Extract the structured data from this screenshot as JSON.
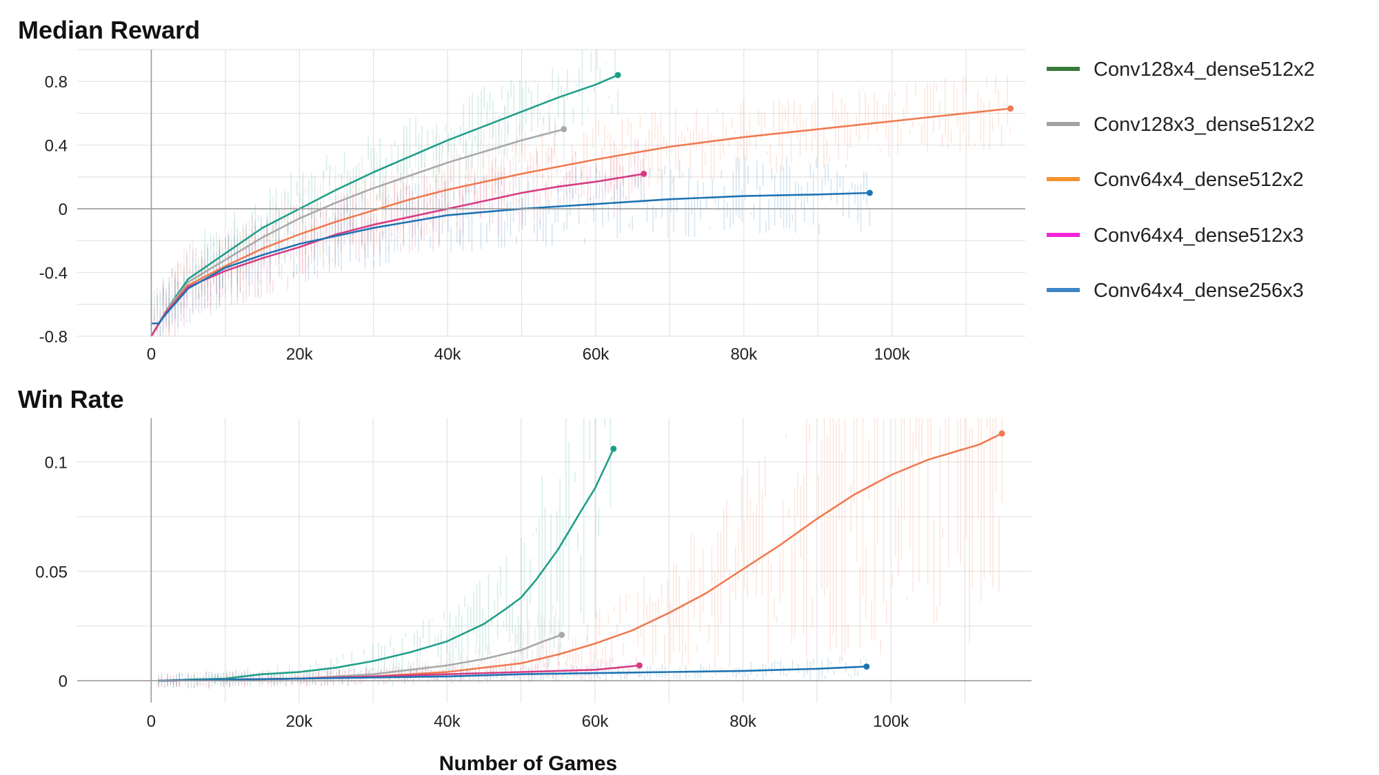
{
  "chart_data": [
    {
      "type": "line",
      "title": "Median Reward",
      "xlabel": "",
      "ylabel": "",
      "xlim": [
        -10000,
        118000
      ],
      "ylim": [
        -0.8,
        1.0
      ],
      "x_ticks": [
        0,
        20000,
        40000,
        60000,
        80000,
        100000
      ],
      "x_tick_labels": [
        "0",
        "20k",
        "40k",
        "60k",
        "80k",
        "100k"
      ],
      "y_ticks": [
        -0.8,
        -0.4,
        0,
        0.4,
        0.8
      ],
      "y_tick_labels": [
        "-0.8",
        "-0.4",
        "0",
        "0.4",
        "0.8"
      ],
      "grid": true,
      "series": [
        {
          "name": "Conv128x4_dense512x2",
          "color": "#1f9e89",
          "x": [
            0,
            2000,
            5000,
            10000,
            15000,
            20000,
            25000,
            30000,
            35000,
            40000,
            45000,
            50000,
            55000,
            60000,
            63000
          ],
          "y": [
            -0.8,
            -0.64,
            -0.44,
            -0.28,
            -0.12,
            0.0,
            0.12,
            0.23,
            0.33,
            0.43,
            0.52,
            0.61,
            0.7,
            0.78,
            0.84
          ]
        },
        {
          "name": "Conv128x3_dense512x2",
          "color": "#a9a9a9",
          "x": [
            0,
            2000,
            5000,
            10000,
            15000,
            20000,
            25000,
            30000,
            35000,
            40000,
            45000,
            50000,
            55700
          ],
          "y": [
            -0.8,
            -0.64,
            -0.46,
            -0.32,
            -0.18,
            -0.06,
            0.04,
            0.13,
            0.21,
            0.29,
            0.36,
            0.43,
            0.5
          ]
        },
        {
          "name": "Conv64x4_dense512x2",
          "color": "#f0794f",
          "x": [
            0,
            2000,
            5000,
            10000,
            15000,
            20000,
            25000,
            30000,
            35000,
            40000,
            45000,
            50000,
            60000,
            70000,
            80000,
            90000,
            100000,
            110000,
            116000
          ],
          "y": [
            -0.8,
            -0.65,
            -0.48,
            -0.36,
            -0.25,
            -0.16,
            -0.08,
            -0.01,
            0.06,
            0.12,
            0.17,
            0.22,
            0.31,
            0.39,
            0.45,
            0.5,
            0.55,
            0.6,
            0.63
          ]
        },
        {
          "name": "Conv64x4_dense512x3",
          "color": "#d63b82",
          "x": [
            0,
            2000,
            5000,
            10000,
            15000,
            20000,
            25000,
            30000,
            35000,
            40000,
            45000,
            50000,
            55000,
            60000,
            66500
          ],
          "y": [
            -0.8,
            -0.65,
            -0.49,
            -0.39,
            -0.31,
            -0.24,
            -0.16,
            -0.1,
            -0.05,
            0.0,
            0.05,
            0.1,
            0.14,
            0.17,
            0.22
          ]
        },
        {
          "name": "Conv64x4_dense256x3",
          "color": "#1d73b3",
          "x": [
            0,
            1000,
            2000,
            5000,
            10000,
            15000,
            20000,
            25000,
            30000,
            35000,
            40000,
            50000,
            60000,
            70000,
            80000,
            90000,
            97000
          ],
          "y": [
            -0.72,
            -0.72,
            -0.66,
            -0.5,
            -0.37,
            -0.29,
            -0.22,
            -0.17,
            -0.12,
            -0.08,
            -0.04,
            0.0,
            0.03,
            0.06,
            0.08,
            0.09,
            0.1
          ]
        }
      ]
    },
    {
      "type": "line",
      "title": "Win Rate",
      "xlabel": "Number of Games",
      "ylabel": "",
      "xlim": [
        -10000,
        119000
      ],
      "ylim": [
        -0.01,
        0.12
      ],
      "x_ticks": [
        0,
        20000,
        40000,
        60000,
        80000,
        100000
      ],
      "x_tick_labels": [
        "0",
        "20k",
        "40k",
        "60k",
        "80k",
        "100k"
      ],
      "y_ticks": [
        0,
        0.05,
        0.1
      ],
      "y_tick_labels": [
        "0",
        "0.05",
        "0.1"
      ],
      "grid": true,
      "series": [
        {
          "name": "Conv128x4_dense512x2",
          "color": "#1f9e89",
          "x": [
            1000,
            5000,
            10000,
            15000,
            20000,
            25000,
            30000,
            35000,
            40000,
            45000,
            48000,
            50000,
            52000,
            55000,
            58000,
            60000,
            62500
          ],
          "y": [
            0.0,
            0.0005,
            0.001,
            0.003,
            0.004,
            0.006,
            0.009,
            0.013,
            0.018,
            0.026,
            0.033,
            0.038,
            0.046,
            0.06,
            0.077,
            0.088,
            0.106
          ]
        },
        {
          "name": "Conv128x3_dense512x2",
          "color": "#a9a9a9",
          "x": [
            1000,
            10000,
            20000,
            30000,
            35000,
            40000,
            45000,
            50000,
            53000,
            55500
          ],
          "y": [
            0.0,
            0.0005,
            0.001,
            0.003,
            0.005,
            0.007,
            0.01,
            0.014,
            0.018,
            0.021
          ]
        },
        {
          "name": "Conv64x4_dense512x2",
          "color": "#f0794f",
          "x": [
            1000,
            10000,
            20000,
            30000,
            40000,
            50000,
            55000,
            60000,
            65000,
            70000,
            75000,
            80000,
            85000,
            90000,
            95000,
            100000,
            105000,
            112000,
            115000
          ],
          "y": [
            0.0,
            0.0005,
            0.001,
            0.002,
            0.004,
            0.008,
            0.012,
            0.017,
            0.023,
            0.031,
            0.04,
            0.051,
            0.062,
            0.074,
            0.085,
            0.094,
            0.101,
            0.108,
            0.113
          ]
        },
        {
          "name": "Conv64x4_dense512x3",
          "color": "#d63b82",
          "x": [
            1000,
            10000,
            20000,
            30000,
            40000,
            50000,
            60000,
            66000
          ],
          "y": [
            0.0,
            0.0005,
            0.001,
            0.002,
            0.003,
            0.004,
            0.005,
            0.007
          ]
        },
        {
          "name": "Conv64x4_dense256x3",
          "color": "#1d73b3",
          "x": [
            1000,
            10000,
            20000,
            30000,
            40000,
            50000,
            60000,
            70000,
            80000,
            90000,
            96700
          ],
          "y": [
            0.0,
            0.0005,
            0.001,
            0.0015,
            0.002,
            0.003,
            0.0035,
            0.004,
            0.0045,
            0.0055,
            0.0065
          ]
        }
      ]
    }
  ],
  "legend": {
    "position": "right",
    "items": [
      {
        "label": "Conv128x4_dense512x2",
        "color": "#3a7a3c"
      },
      {
        "label": "Conv128x3_dense512x2",
        "color": "#a3a3a3"
      },
      {
        "label": "Conv64x4_dense512x2",
        "color": "#f4922e"
      },
      {
        "label": "Conv64x4_dense512x3",
        "color": "#f123d6"
      },
      {
        "label": "Conv64x4_dense256x3",
        "color": "#3d84c6"
      }
    ]
  }
}
